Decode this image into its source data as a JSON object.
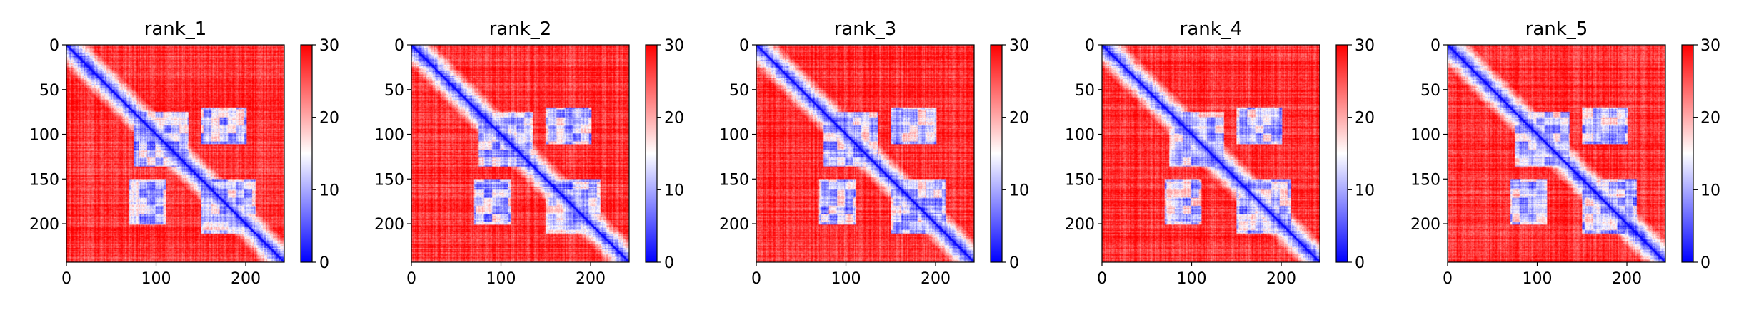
{
  "chart_data": {
    "type": "heatmap",
    "colormap": {
      "name": "bwr",
      "low": "#0000ff",
      "mid": "#ffffff",
      "high": "#ff0000"
    },
    "n": 243,
    "x_ticks": [
      0,
      100,
      200
    ],
    "y_ticks": [
      0,
      50,
      100,
      150,
      200
    ],
    "clim": [
      0,
      30
    ],
    "colorbar_ticks": [
      0,
      10,
      20,
      30
    ],
    "panels": [
      {
        "title": "rank_1",
        "blocks": [
          [
            75,
            135,
            75,
            135
          ],
          [
            150,
            210,
            150,
            210
          ],
          [
            70,
            110,
            150,
            200
          ]
        ]
      },
      {
        "title": "rank_2",
        "blocks": [
          [
            75,
            135,
            75,
            135
          ],
          [
            150,
            210,
            150,
            210
          ],
          [
            70,
            110,
            150,
            200
          ]
        ]
      },
      {
        "title": "rank_3",
        "blocks": [
          [
            75,
            135,
            75,
            135
          ],
          [
            150,
            210,
            150,
            210
          ],
          [
            70,
            110,
            150,
            200
          ]
        ]
      },
      {
        "title": "rank_4",
        "blocks": [
          [
            75,
            135,
            75,
            135
          ],
          [
            150,
            210,
            150,
            210
          ],
          [
            70,
            110,
            150,
            200
          ]
        ]
      },
      {
        "title": "rank_5",
        "blocks": [
          [
            75,
            135,
            75,
            135
          ],
          [
            150,
            210,
            150,
            210
          ],
          [
            70,
            110,
            150,
            200
          ]
        ]
      }
    ]
  }
}
